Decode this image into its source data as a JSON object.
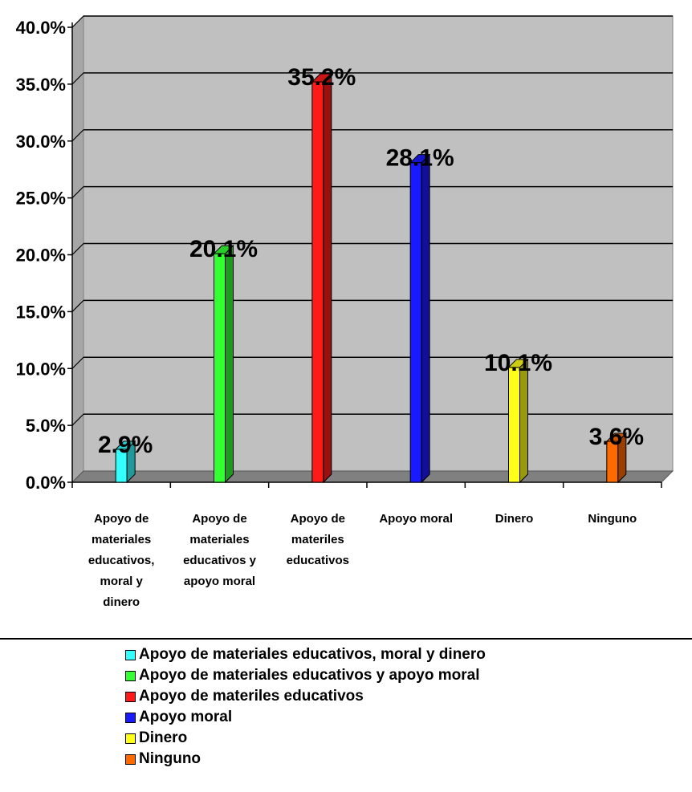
{
  "chart_data": {
    "type": "bar",
    "categories": [
      "Apoyo de materiales educativos, moral y dinero",
      "Apoyo de materiales educativos y apoyo moral",
      "Apoyo de materiles educativos",
      "Apoyo moral",
      "Dinero",
      "Ninguno"
    ],
    "category_label_lines": [
      [
        "Apoyo de",
        "materiales",
        "educativos,",
        "moral y",
        "dinero"
      ],
      [
        "Apoyo de",
        "materiales",
        "educativos y",
        "apoyo moral"
      ],
      [
        "Apoyo de",
        "materiles",
        "educativos"
      ],
      [
        "Apoyo moral"
      ],
      [
        "Dinero"
      ],
      [
        "Ninguno"
      ]
    ],
    "values": [
      2.9,
      20.1,
      35.2,
      28.1,
      10.1,
      3.6
    ],
    "data_labels": [
      "2.9%",
      "20.1%",
      "35.2%",
      "28.1%",
      "10.1%",
      "3.6%"
    ],
    "colors": [
      "#33ffff",
      "#33ff33",
      "#ff1a1a",
      "#1a1aff",
      "#ffff1a",
      "#ff6a00"
    ],
    "ylim": [
      0,
      40
    ],
    "yticks": [
      "0.0%",
      "5.0%",
      "10.0%",
      "15.0%",
      "20.0%",
      "25.0%",
      "30.0%",
      "35.0%",
      "40.0%"
    ],
    "grid": true,
    "plot_background": "#c0c0c0",
    "legend_position": "bottom",
    "legend": [
      "Apoyo de materiales educativos, moral y dinero",
      "Apoyo de materiales educativos y apoyo moral",
      "Apoyo de materiles educativos",
      "Apoyo moral",
      "Dinero",
      "Ninguno"
    ]
  }
}
